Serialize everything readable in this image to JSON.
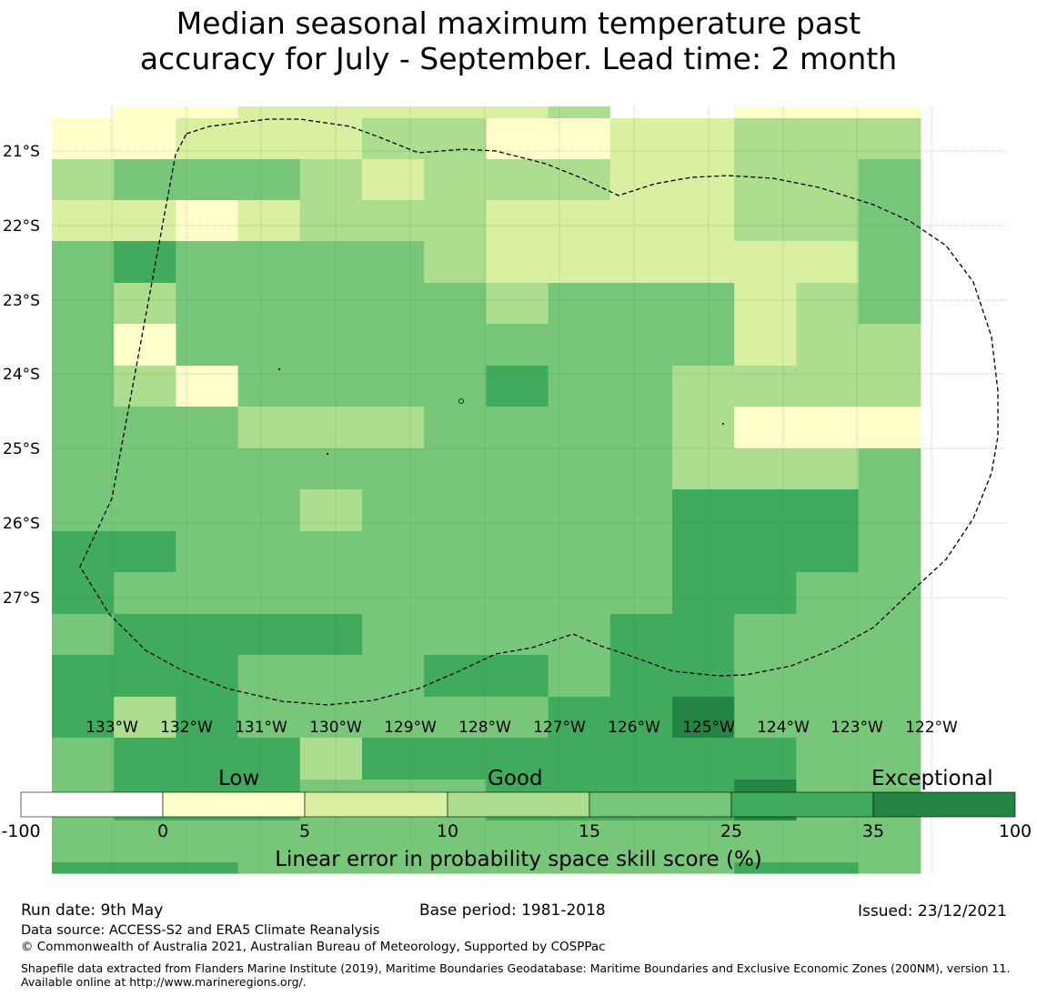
{
  "title_lines": [
    "Median seasonal maximum temperature past",
    "accuracy for July - September. Lead time: 2 month"
  ],
  "map": {
    "lat_labels": [
      "21°S",
      "22°S",
      "23°S",
      "24°S",
      "25°S",
      "26°S",
      "27°S"
    ],
    "lon_labels": [
      "133°W",
      "132°W",
      "131°W",
      "130°W",
      "129°W",
      "128°W",
      "127°W",
      "126°W",
      "125°W",
      "124°W",
      "123°W",
      "122°W"
    ],
    "grid_rows": [
      "01122222300111",
      "11222331122333",
      "34443233322334",
      "22123332222334",
      "45444432222224",
      "43444443444234",
      "41444444444233",
      "43144445443333",
      "44433344443111",
      "44444444443334",
      "44443444445554",
      "55444444445554",
      "54444444445544",
      "45555444455444",
      "55544455455444",
      "53544444556444",
      "45553555555544",
      "45554445555644",
      "44444444444444",
      "55544444444554"
    ],
    "row_heights": [
      13,
      45,
      45,
      45,
      46,
      45,
      46,
      45,
      46,
      45,
      46,
      45,
      46,
      45,
      46,
      45,
      46,
      45,
      46,
      12
    ],
    "eez_boundary": "drawn"
  },
  "colorbar": {
    "category_labels": [
      "Low",
      "Good",
      "Exceptional"
    ],
    "ticks": [
      "-100",
      "0",
      "5",
      "10",
      "15",
      "25",
      "35",
      "100"
    ],
    "colors": [
      "#ffffff",
      "#ffffcc",
      "#d9f0a3",
      "#addd8e",
      "#78c679",
      "#41ab5d",
      "#238443"
    ],
    "label": "Linear error in probability space skill score (%)"
  },
  "footer": {
    "run_date": "Run date: 9th May",
    "base_period": "Base period: 1981-2018",
    "issued": "Issued: 23/12/2021",
    "data_source": "Data source: ACCESS-S2 and ERA5 Climate Reanalysis",
    "copyright": "© Commonwealth of Australia 2021, Australian Bureau of Meteorology, Supported by COSPPac",
    "shapefile_note": "Shapefile data extracted from Flanders Marine Institute (2019), Maritime Boundaries Geodatabase: Maritime Boundaries and Exclusive Economic Zones (200NM), version 11. Available online at http://www.marineregions.org/."
  }
}
